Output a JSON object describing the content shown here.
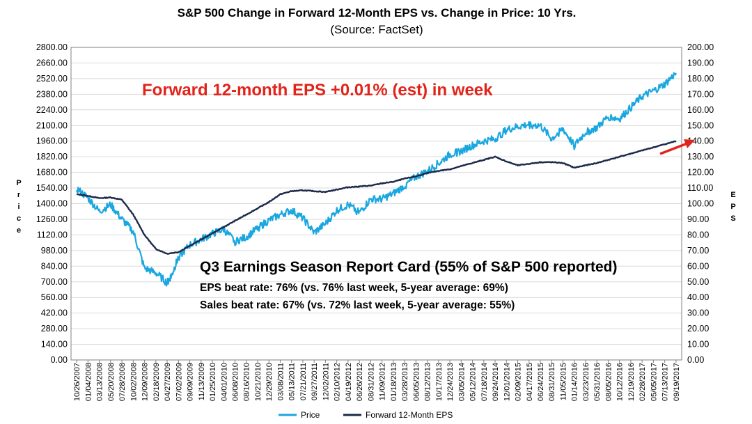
{
  "colors": {
    "price": "#1aa7e0",
    "eps": "#1c2a4a",
    "annotation": "#e2231a",
    "grid": "#d9d9d9"
  },
  "chart_data": {
    "type": "line",
    "title": "S&P 500 Change in Forward 12-Month EPS vs. Change in Price: 10 Yrs.",
    "subtitle": "(Source: FactSet)",
    "ylabel_left": "Price",
    "ylabel_right": "EPS",
    "ylim_left": [
      0,
      2800
    ],
    "ylim_right": [
      0,
      200
    ],
    "yticks_left": [
      "0.00",
      "140.00",
      "280.00",
      "420.00",
      "560.00",
      "700.00",
      "840.00",
      "980.00",
      "1120.00",
      "1260.00",
      "1400.00",
      "1540.00",
      "1680.00",
      "1820.00",
      "1960.00",
      "2100.00",
      "2240.00",
      "2380.00",
      "2520.00",
      "2660.00",
      "2800.00"
    ],
    "yticks_right": [
      "0.00",
      "10.00",
      "20.00",
      "30.00",
      "40.00",
      "50.00",
      "60.00",
      "70.00",
      "80.00",
      "90.00",
      "100.00",
      "110.00",
      "120.00",
      "130.00",
      "140.00",
      "150.00",
      "160.00",
      "170.00",
      "180.00",
      "190.00",
      "200.00"
    ],
    "xticks": [
      "10/26/2007",
      "01/04/2008",
      "03/13/2008",
      "05/20/2008",
      "07/28/2008",
      "10/02/2008",
      "12/09/2008",
      "02/18/2009",
      "04/27/2009",
      "07/02/2009",
      "09/09/2009",
      "11/13/2009",
      "01/25/2010",
      "04/01/2010",
      "06/08/2010",
      "08/16/2010",
      "10/21/2010",
      "12/29/2010",
      "03/08/2011",
      "05/13/2011",
      "07/21/2011",
      "09/27/2011",
      "12/02/2011",
      "02/10/2012",
      "04/19/2012",
      "06/26/2012",
      "08/31/2012",
      "11/09/2012",
      "01/18/2013",
      "03/28/2013",
      "06/05/2013",
      "08/12/2013",
      "10/17/2013",
      "12/24/2013",
      "03/05/2014",
      "05/12/2014",
      "07/18/2014",
      "09/24/2014",
      "12/01/2014",
      "02/09/2015",
      "04/17/2015",
      "06/24/2015",
      "08/31/2015",
      "11/05/2015",
      "01/14/2016",
      "03/23/2016",
      "05/31/2016",
      "08/05/2016",
      "10/12/2016",
      "12/19/2016",
      "02/28/2017",
      "05/05/2017",
      "07/13/2017",
      "09/19/2017"
    ],
    "grid": true,
    "legend_position": "bottom",
    "series": [
      {
        "name": "Price",
        "axis": "left",
        "color": "#1aa7e0",
        "points": [
          [
            0,
            1535
          ],
          [
            1,
            1450
          ],
          [
            2,
            1330
          ],
          [
            3,
            1390
          ],
          [
            4,
            1260
          ],
          [
            5,
            1150
          ],
          [
            6,
            820
          ],
          [
            7,
            780
          ],
          [
            8,
            690
          ],
          [
            8.4,
            760
          ],
          [
            9,
            920
          ],
          [
            10,
            1030
          ],
          [
            11,
            1080
          ],
          [
            12,
            1130
          ],
          [
            13,
            1170
          ],
          [
            14,
            1060
          ],
          [
            15,
            1100
          ],
          [
            16,
            1180
          ],
          [
            17,
            1250
          ],
          [
            18,
            1300
          ],
          [
            19,
            1340
          ],
          [
            20,
            1270
          ],
          [
            21,
            1140
          ],
          [
            22,
            1220
          ],
          [
            23,
            1340
          ],
          [
            24,
            1390
          ],
          [
            25,
            1320
          ],
          [
            26,
            1440
          ],
          [
            27,
            1440
          ],
          [
            28,
            1490
          ],
          [
            29,
            1560
          ],
          [
            30,
            1640
          ],
          [
            31,
            1690
          ],
          [
            32,
            1760
          ],
          [
            33,
            1840
          ],
          [
            34,
            1870
          ],
          [
            35,
            1920
          ],
          [
            36,
            1960
          ],
          [
            37,
            1980
          ],
          [
            38,
            2060
          ],
          [
            39,
            2090
          ],
          [
            40,
            2110
          ],
          [
            41,
            2100
          ],
          [
            42,
            1980
          ],
          [
            43,
            2070
          ],
          [
            44,
            1920
          ],
          [
            45,
            2040
          ],
          [
            46,
            2080
          ],
          [
            47,
            2180
          ],
          [
            48,
            2160
          ],
          [
            49,
            2260
          ],
          [
            50,
            2360
          ],
          [
            51,
            2410
          ],
          [
            52,
            2470
          ],
          [
            53,
            2570
          ]
        ]
      },
      {
        "name": "Forward 12-Month EPS",
        "axis": "right",
        "color": "#1c2a4a",
        "points": [
          [
            0,
            106
          ],
          [
            1,
            105
          ],
          [
            2,
            103.5
          ],
          [
            3,
            104
          ],
          [
            4,
            102.5
          ],
          [
            5,
            93
          ],
          [
            6,
            80
          ],
          [
            7,
            71
          ],
          [
            8,
            68
          ],
          [
            9,
            69
          ],
          [
            10,
            73
          ],
          [
            11,
            77
          ],
          [
            12,
            81
          ],
          [
            13,
            85
          ],
          [
            14,
            89
          ],
          [
            15,
            93
          ],
          [
            16,
            97
          ],
          [
            17,
            101
          ],
          [
            18,
            106
          ],
          [
            19,
            108
          ],
          [
            20,
            108.5
          ],
          [
            21,
            108
          ],
          [
            22,
            107.5
          ],
          [
            23,
            109
          ],
          [
            24,
            110.5
          ],
          [
            25,
            111
          ],
          [
            26,
            111.5
          ],
          [
            27,
            113
          ],
          [
            28,
            114
          ],
          [
            29,
            116
          ],
          [
            30,
            117.5
          ],
          [
            31,
            119.5
          ],
          [
            32,
            121
          ],
          [
            33,
            122
          ],
          [
            34,
            124
          ],
          [
            35,
            126
          ],
          [
            36,
            128
          ],
          [
            37,
            130
          ],
          [
            38,
            127
          ],
          [
            39,
            124.5
          ],
          [
            40,
            125.5
          ],
          [
            41,
            126.5
          ],
          [
            42,
            126.5
          ],
          [
            43,
            126
          ],
          [
            44,
            123
          ],
          [
            45,
            124.5
          ],
          [
            46,
            126
          ],
          [
            47,
            128
          ],
          [
            48,
            130
          ],
          [
            49,
            132
          ],
          [
            50,
            134
          ],
          [
            51,
            136
          ],
          [
            52,
            138
          ],
          [
            53,
            140
          ]
        ]
      }
    ],
    "annotations": {
      "eps_week": "Forward 12-month EPS +0.01% (est) in week",
      "report_card_title": "Q3 Earnings Season Report Card (55% of S&P 500 reported)",
      "eps_beat": "EPS beat rate: 76% (vs. 76% last week, 5-year average: 69%)",
      "sales_beat": "Sales beat rate: 67% (vs. 72% last week, 5-year average: 55%)"
    },
    "legend": [
      "Price",
      "Forward 12-Month EPS"
    ]
  }
}
